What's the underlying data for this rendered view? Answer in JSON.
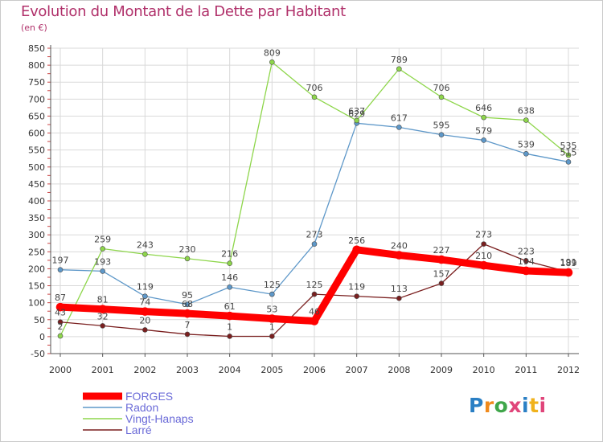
{
  "title": "Evolution du Montant de la Dette par Habitant",
  "unit": "(en €)",
  "logo": {
    "text": "Proxiti",
    "letter_colors": [
      "#2a7fc4",
      "#f08a1c",
      "#3fa64a",
      "#e0457a",
      "#2a7fc4",
      "#f0b21c",
      "#e0457a"
    ]
  },
  "chart_data": {
    "type": "line",
    "categories": [
      "2000",
      "2001",
      "2002",
      "2003",
      "2004",
      "2005",
      "2006",
      "2007",
      "2008",
      "2009",
      "2010",
      "2011",
      "2012"
    ],
    "ylim": [
      -50,
      850
    ],
    "yticks": [
      -50,
      0,
      50,
      100,
      150,
      200,
      250,
      300,
      350,
      400,
      450,
      500,
      550,
      600,
      650,
      700,
      750,
      800,
      850
    ],
    "grid": true,
    "legend_position": "bottom-left",
    "series": [
      {
        "name": "FORGES",
        "color": "#ff0000",
        "width": 9,
        "values": [
          87,
          81,
          74,
          68,
          61,
          53,
          46,
          256,
          240,
          227,
          210,
          194,
          189
        ],
        "labels": [
          "87",
          "81",
          "74",
          "68",
          "61",
          "53",
          "46",
          "256",
          "240",
          "227",
          "210",
          "194",
          "189"
        ]
      },
      {
        "name": "Radon",
        "color": "#5e98c9",
        "width": 1.3,
        "values": [
          197,
          193,
          119,
          95,
          146,
          125,
          273,
          629,
          617,
          595,
          579,
          539,
          515
        ],
        "labels": [
          "197",
          "193",
          "119",
          "95",
          "146",
          "125",
          "273",
          "629",
          "617",
          "595",
          "579",
          "539",
          "515"
        ]
      },
      {
        "name": "Vingt-Hanaps",
        "color": "#8ed64b",
        "width": 1.3,
        "values": [
          2,
          259,
          243,
          230,
          216,
          809,
          706,
          637,
          789,
          706,
          646,
          638,
          535
        ],
        "labels": [
          "2",
          "259",
          "243",
          "230",
          "216",
          "809",
          "706",
          "637",
          "789",
          "706",
          "646",
          "638",
          "535"
        ]
      },
      {
        "name": "Larré",
        "color": "#7a1f1f",
        "width": 1.3,
        "values": [
          43,
          32,
          20,
          7,
          1,
          1,
          125,
          119,
          113,
          157,
          273,
          223,
          191
        ],
        "labels": [
          "43",
          "32",
          "20",
          "7",
          "1",
          "1",
          "125",
          "119",
          "113",
          "157",
          "273",
          "223",
          "191"
        ]
      }
    ]
  }
}
